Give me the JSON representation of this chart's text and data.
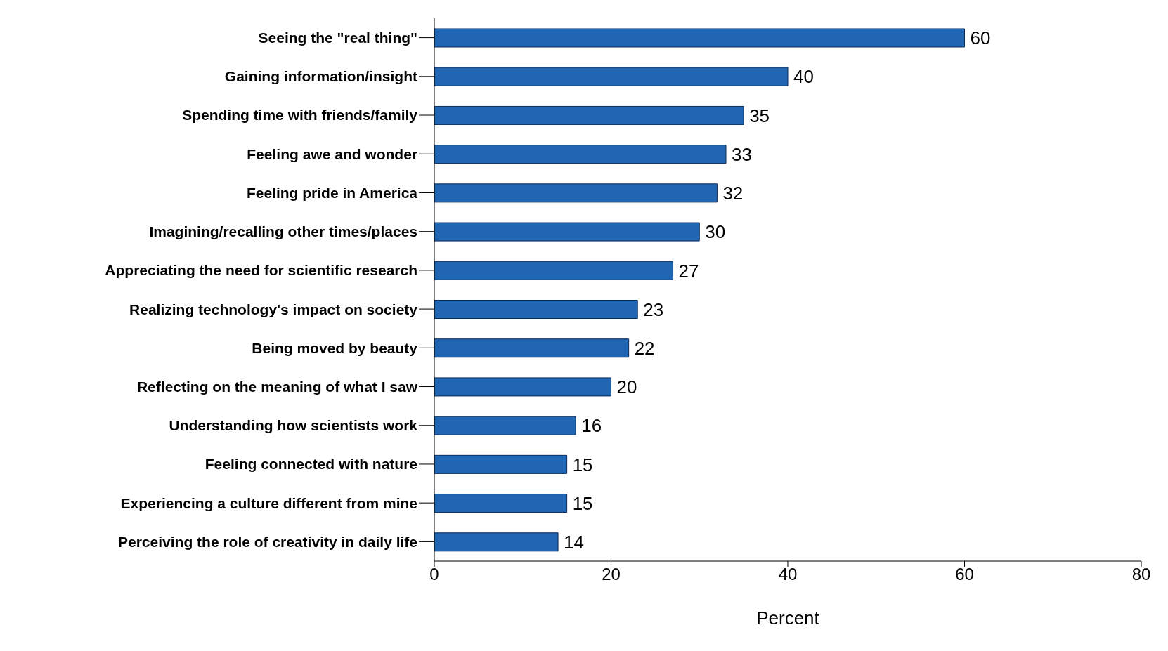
{
  "chart_data": {
    "type": "bar",
    "orientation": "horizontal",
    "xlabel": "Percent",
    "categories": [
      "Seeing the \"real thing\"",
      "Gaining information/insight",
      "Spending time with friends/family",
      "Feeling awe and wonder",
      "Feeling pride in America",
      "Imagining/recalling other times/places",
      "Appreciating the need for scientific research",
      "Realizing technology's impact on society",
      "Being moved by beauty",
      "Reflecting on the meaning of what I saw",
      "Understanding how scientists work",
      "Feeling connected with nature",
      "Experiencing a culture different from mine",
      "Perceiving the role of creativity in daily life"
    ],
    "values": [
      60,
      40,
      35,
      33,
      32,
      30,
      27,
      23,
      22,
      20,
      16,
      15,
      15,
      14
    ],
    "color": "#2166b3",
    "xlim": [
      0,
      80
    ],
    "xticks": [
      0,
      20,
      40,
      60,
      80
    ],
    "grid": false,
    "data_labels": true
  }
}
